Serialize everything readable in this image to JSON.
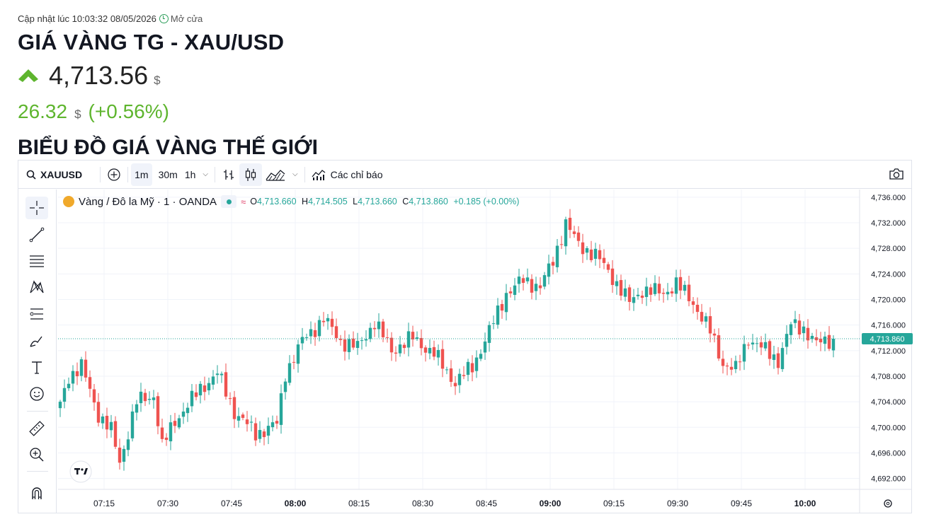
{
  "header": {
    "updated": "Cập nhật lúc 10:03:32 08/05/2026",
    "market_status": "Mở cửa",
    "title": "GIÁ VÀNG TG - XAU/USD",
    "price": "4,713.56",
    "price_unit": "$",
    "change": "26.32",
    "change_unit": "$",
    "change_pct": "(+0.56%)",
    "chart_heading": "BIỂU ĐỒ GIÁ VÀNG THẾ GIỚI"
  },
  "toolbar": {
    "symbol": "XAUUSD",
    "timeframes": [
      "1m",
      "30m",
      "1h"
    ],
    "indicators_label": "Các chỉ báo"
  },
  "legend": {
    "name": "Vàng / Đô la Mỹ · 1 · OANDA",
    "o_label": "O",
    "o": "4,713.660",
    "h_label": "H",
    "h": "4,714.505",
    "l_label": "L",
    "l": "4,713.660",
    "c_label": "C",
    "c": "4,713.860",
    "chg": "+0.185 (+0.00%)"
  },
  "colors": {
    "up": "#26a69a",
    "down": "#ef5350",
    "accent": "#5eb52e"
  },
  "chart_data": {
    "type": "candlestick",
    "y_ticks": [
      4736,
      4732,
      4728,
      4724,
      4720,
      4716,
      4712,
      4708,
      4704,
      4700,
      4696,
      4692
    ],
    "y_tick_labels": [
      "4,736.000",
      "4,732.000",
      "4,728.000",
      "4,724.000",
      "4,720.000",
      "4,716.000",
      "4,712.000",
      "4,708.000",
      "4,704.000",
      "4,700.000",
      "4,696.000",
      "4,692.000"
    ],
    "ylim": [
      4690.3,
      4737.2
    ],
    "x_ticks": [
      "07:15",
      "07:30",
      "07:45",
      "08:00",
      "08:15",
      "08:30",
      "08:45",
      "09:00",
      "09:15",
      "09:30",
      "09:45",
      "10:00"
    ],
    "x_tick_bold": [
      "08:00",
      "09:00",
      "10:00"
    ],
    "current_price": 4713.86,
    "current_price_label": "4,713.860",
    "close_anchors": [
      [
        0,
        4703.5
      ],
      [
        2,
        4708.0
      ],
      [
        5,
        4709.5
      ],
      [
        9,
        4702.0
      ],
      [
        12,
        4699.5
      ],
      [
        14,
        4694.5
      ],
      [
        18,
        4704.0
      ],
      [
        22,
        4705.0
      ],
      [
        24,
        4697.0
      ],
      [
        27,
        4701.0
      ],
      [
        33,
        4706.0
      ],
      [
        37,
        4708.5
      ],
      [
        41,
        4702.5
      ],
      [
        46,
        4699.0
      ],
      [
        51,
        4700.5
      ],
      [
        53,
        4708.5
      ],
      [
        57,
        4713.5
      ],
      [
        62,
        4717.0
      ],
      [
        66,
        4713.5
      ],
      [
        70,
        4712.5
      ],
      [
        74,
        4716.5
      ],
      [
        78,
        4712.0
      ],
      [
        83,
        4714.0
      ],
      [
        88,
        4711.5
      ],
      [
        93,
        4707.0
      ],
      [
        97,
        4709.5
      ],
      [
        101,
        4715.0
      ],
      [
        105,
        4721.0
      ],
      [
        109,
        4723.0
      ],
      [
        113,
        4722.0
      ],
      [
        116,
        4726.0
      ],
      [
        119,
        4732.0
      ],
      [
        122,
        4728.5
      ],
      [
        126,
        4727.0
      ],
      [
        130,
        4723.5
      ],
      [
        134,
        4719.5
      ],
      [
        137,
        4721.5
      ],
      [
        142,
        4721.0
      ],
      [
        145,
        4722.5
      ],
      [
        149,
        4719.5
      ],
      [
        153,
        4715.0
      ],
      [
        156,
        4710.0
      ],
      [
        159,
        4709.0
      ],
      [
        162,
        4714.0
      ],
      [
        166,
        4712.0
      ],
      [
        169,
        4710.5
      ],
      [
        172,
        4716.0
      ],
      [
        175,
        4715.5
      ],
      [
        178,
        4713.0
      ],
      [
        180,
        4713.5
      ],
      [
        182,
        4713.86
      ]
    ]
  }
}
